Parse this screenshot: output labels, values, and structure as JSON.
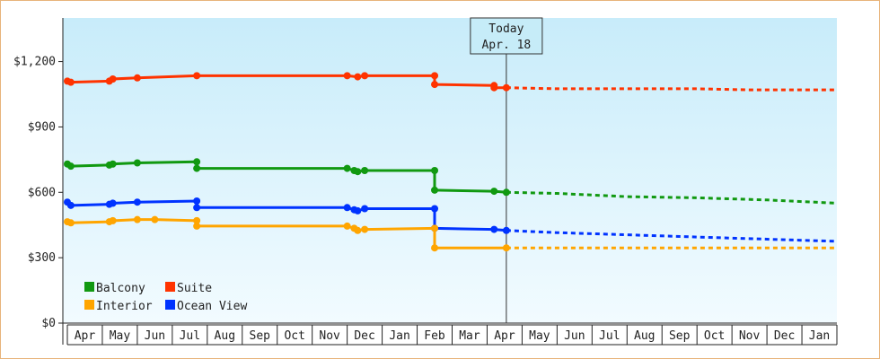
{
  "chart_data": {
    "type": "line",
    "ylim": [
      0,
      1400
    ],
    "y_ticks": [
      {
        "value": 0,
        "label": "$0"
      },
      {
        "value": 300,
        "label": "$300"
      },
      {
        "value": 600,
        "label": "$600"
      },
      {
        "value": 900,
        "label": "$900"
      },
      {
        "value": 1200,
        "label": "$1,200"
      }
    ],
    "months": [
      "Apr",
      "May",
      "Jun",
      "Jul",
      "Aug",
      "Sep",
      "Oct",
      "Nov",
      "Dec",
      "Jan",
      "Feb",
      "Mar",
      "Apr",
      "May",
      "Jun",
      "Jul",
      "Aug",
      "Sep",
      "Oct",
      "Nov",
      "Dec",
      "Jan"
    ],
    "grid": false,
    "today": {
      "line1": "Today",
      "line2": "Apr. 18",
      "month_position": 12.55
    },
    "legend": {
      "placement": "bottom-left",
      "entries": [
        {
          "label": "Balcony",
          "color": "#119911"
        },
        {
          "label": "Suite",
          "color": "#ff3300"
        },
        {
          "label": "Interior",
          "color": "#ffa500"
        },
        {
          "label": "Ocean View",
          "color": "#0033ff"
        }
      ]
    },
    "series": [
      {
        "name": "Suite",
        "color": "#ff3300",
        "history": [
          [
            0.0,
            1110
          ],
          [
            0.1,
            1105
          ],
          [
            1.2,
            1110
          ],
          [
            1.3,
            1120
          ],
          [
            2.0,
            1125
          ],
          [
            3.7,
            1135
          ],
          [
            8.0,
            1135
          ],
          [
            8.3,
            1130
          ],
          [
            8.5,
            1135
          ],
          [
            10.5,
            1135
          ],
          [
            10.5,
            1095
          ],
          [
            12.2,
            1090
          ],
          [
            12.2,
            1080
          ],
          [
            12.55,
            1080
          ]
        ],
        "forecast": [
          [
            12.55,
            1080
          ],
          [
            14.0,
            1075
          ],
          [
            16.0,
            1075
          ],
          [
            18.0,
            1075
          ],
          [
            19.5,
            1070
          ],
          [
            22.0,
            1070
          ]
        ]
      },
      {
        "name": "Balcony",
        "color": "#119911",
        "history": [
          [
            0.0,
            730
          ],
          [
            0.1,
            720
          ],
          [
            1.2,
            725
          ],
          [
            1.3,
            730
          ],
          [
            2.0,
            735
          ],
          [
            3.7,
            740
          ],
          [
            3.7,
            710
          ],
          [
            8.0,
            710
          ],
          [
            8.2,
            700
          ],
          [
            8.3,
            695
          ],
          [
            8.5,
            700
          ],
          [
            10.5,
            700
          ],
          [
            10.5,
            610
          ],
          [
            12.2,
            605
          ],
          [
            12.55,
            600
          ]
        ],
        "forecast": [
          [
            12.55,
            600
          ],
          [
            14.0,
            595
          ],
          [
            16.0,
            580
          ],
          [
            18.0,
            575
          ],
          [
            20.0,
            565
          ],
          [
            22.0,
            550
          ]
        ]
      },
      {
        "name": "Ocean View",
        "color": "#0033ff",
        "history": [
          [
            0.0,
            555
          ],
          [
            0.1,
            540
          ],
          [
            1.2,
            545
          ],
          [
            1.3,
            550
          ],
          [
            2.0,
            555
          ],
          [
            3.7,
            560
          ],
          [
            3.7,
            530
          ],
          [
            8.0,
            530
          ],
          [
            8.2,
            520
          ],
          [
            8.3,
            515
          ],
          [
            8.5,
            525
          ],
          [
            10.5,
            525
          ],
          [
            10.5,
            435
          ],
          [
            12.2,
            430
          ],
          [
            12.55,
            425
          ]
        ],
        "forecast": [
          [
            12.55,
            425
          ],
          [
            14.0,
            415
          ],
          [
            16.0,
            405
          ],
          [
            18.0,
            395
          ],
          [
            20.0,
            385
          ],
          [
            22.0,
            375
          ]
        ]
      },
      {
        "name": "Interior",
        "color": "#ffa500",
        "history": [
          [
            0.0,
            465
          ],
          [
            0.1,
            460
          ],
          [
            1.2,
            465
          ],
          [
            1.3,
            470
          ],
          [
            2.0,
            475
          ],
          [
            2.5,
            475
          ],
          [
            3.7,
            470
          ],
          [
            3.7,
            445
          ],
          [
            8.0,
            445
          ],
          [
            8.2,
            435
          ],
          [
            8.3,
            425
          ],
          [
            8.5,
            430
          ],
          [
            10.5,
            435
          ],
          [
            10.5,
            345
          ],
          [
            12.55,
            345
          ]
        ],
        "forecast": [
          [
            12.55,
            345
          ],
          [
            16.0,
            345
          ],
          [
            19.0,
            345
          ],
          [
            22.0,
            345
          ]
        ]
      }
    ]
  }
}
